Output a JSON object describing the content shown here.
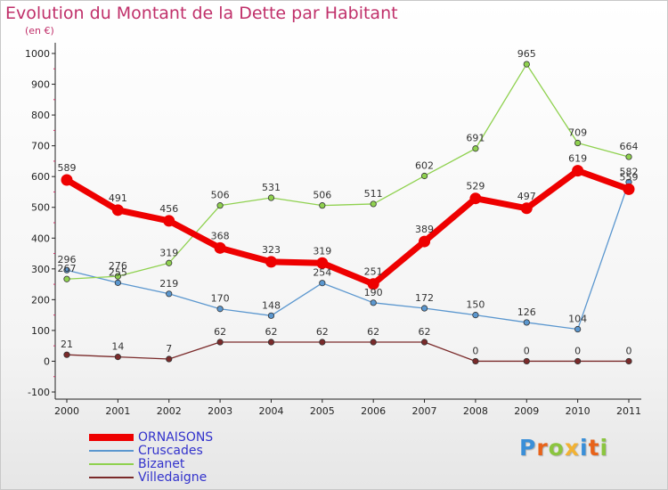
{
  "header": {
    "title": "Evolution du Montant de la Dette par Habitant",
    "subtitle": "(en €)"
  },
  "logo": {
    "text": "Proxiti",
    "letters": [
      "P",
      "r",
      "o",
      "x",
      "i",
      "t",
      "i"
    ],
    "colors": [
      "#3a8fd8",
      "#e8631a",
      "#8bc53f",
      "#f2b233",
      "#3a8fd8",
      "#e8631a",
      "#8bc53f"
    ]
  },
  "chart_data": {
    "type": "line",
    "categories": [
      "2000",
      "2001",
      "2002",
      "2003",
      "2004",
      "2005",
      "2006",
      "2007",
      "2008",
      "2009",
      "2010",
      "2011"
    ],
    "ylim": [
      -100,
      1000
    ],
    "yticks": [
      "-100",
      "0",
      "100",
      "200",
      "300",
      "400",
      "500",
      "600",
      "700",
      "800",
      "900",
      "1000"
    ],
    "grid": false,
    "legend_position": "bottom-left",
    "series": [
      {
        "name": "ORNAISONS",
        "color": "#ee0000",
        "values": [
          589,
          491,
          456,
          368,
          323,
          319,
          251,
          389,
          529,
          497,
          619,
          559
        ],
        "labels": [
          "589",
          "491",
          "456",
          "368",
          "323",
          "319",
          "251",
          "389",
          "529",
          "497",
          "619",
          "559"
        ]
      },
      {
        "name": "Cruscades",
        "color": "#5b97cf",
        "values": [
          296,
          255,
          219,
          170,
          148,
          254,
          190,
          172,
          150,
          126,
          104,
          582
        ],
        "labels": [
          "296",
          "255",
          "219",
          "170",
          "148",
          "254",
          "190",
          "172",
          "150",
          "126",
          "104",
          "582"
        ]
      },
      {
        "name": "Bizanet",
        "color": "#8fd14f",
        "values": [
          267,
          276,
          319,
          506,
          531,
          506,
          511,
          602,
          691,
          965,
          709,
          664
        ],
        "labels": [
          "267",
          "276",
          "319",
          "506",
          "531",
          "506",
          "511",
          "602",
          "691",
          "965",
          "709",
          "664"
        ]
      },
      {
        "name": "Villedaigne",
        "color": "#7a2a2a",
        "values": [
          21,
          14,
          7,
          62,
          62,
          62,
          62,
          62,
          0,
          0,
          0,
          0
        ],
        "labels": [
          "21",
          "14",
          "7",
          "62",
          "62",
          "62",
          "62",
          "62",
          "0",
          "0",
          "0",
          "0"
        ]
      }
    ]
  }
}
